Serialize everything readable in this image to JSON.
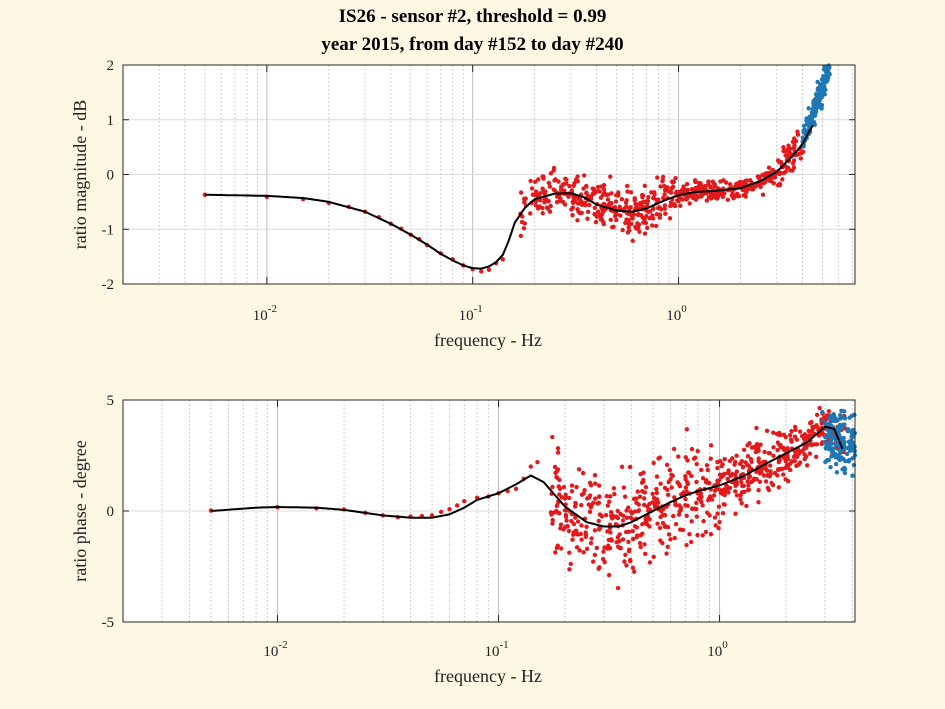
{
  "figure": {
    "background": "#fdf8e4",
    "title_line1": "IS26 - sensor #2, threshold = 0.99",
    "title_line2": "year 2015, from day #152 to day #240"
  },
  "chart_data": [
    {
      "type": "scatter",
      "title": "IS26 - sensor #2, threshold = 0.99\nyear 2015, from day #152 to day #240",
      "xlabel": "frequency - Hz",
      "ylabel": "ratio magnitude - dB",
      "xscale": "log",
      "xlim": [
        0.002,
        7.2
      ],
      "ylim": [
        -2,
        2
      ],
      "xticks": [
        {
          "base": "10",
          "exp": "-2",
          "value": 0.01
        },
        {
          "base": "10",
          "exp": "-1",
          "value": 0.1
        },
        {
          "base": "10",
          "exp": "0",
          "value": 1
        }
      ],
      "yticks": [
        -2,
        -1,
        0,
        1,
        2
      ],
      "grid": true,
      "colors": {
        "rejected": "#e31a1c",
        "above_band": "#1f77b4",
        "fit": "#000000"
      },
      "fit_curve": [
        [
          0.005,
          -0.37
        ],
        [
          0.01,
          -0.39
        ],
        [
          0.015,
          -0.43
        ],
        [
          0.02,
          -0.5
        ],
        [
          0.03,
          -0.68
        ],
        [
          0.04,
          -0.9
        ],
        [
          0.05,
          -1.1
        ],
        [
          0.06,
          -1.28
        ],
        [
          0.07,
          -1.45
        ],
        [
          0.08,
          -1.57
        ],
        [
          0.09,
          -1.66
        ],
        [
          0.1,
          -1.71
        ],
        [
          0.11,
          -1.72
        ],
        [
          0.12,
          -1.68
        ],
        [
          0.13,
          -1.6
        ],
        [
          0.14,
          -1.47
        ],
        [
          0.15,
          -1.2
        ],
        [
          0.16,
          -0.88
        ],
        [
          0.18,
          -0.6
        ],
        [
          0.2,
          -0.45
        ],
        [
          0.25,
          -0.35
        ],
        [
          0.3,
          -0.34
        ],
        [
          0.35,
          -0.42
        ],
        [
          0.4,
          -0.55
        ],
        [
          0.5,
          -0.66
        ],
        [
          0.6,
          -0.68
        ],
        [
          0.7,
          -0.62
        ],
        [
          0.8,
          -0.52
        ],
        [
          0.9,
          -0.44
        ],
        [
          1.0,
          -0.38
        ],
        [
          1.2,
          -0.32
        ],
        [
          1.5,
          -0.3
        ],
        [
          2.0,
          -0.25
        ],
        [
          2.5,
          -0.12
        ],
        [
          3.0,
          0.05
        ],
        [
          3.5,
          0.3
        ],
        [
          4.0,
          0.55
        ],
        [
          4.3,
          0.78
        ],
        [
          4.5,
          0.9
        ]
      ],
      "points_low_freq": [
        [
          0.005,
          -0.37
        ],
        [
          0.01,
          -0.41
        ],
        [
          0.015,
          -0.45
        ],
        [
          0.02,
          -0.52
        ],
        [
          0.025,
          -0.59
        ],
        [
          0.03,
          -0.68
        ],
        [
          0.035,
          -0.78
        ],
        [
          0.04,
          -0.9
        ],
        [
          0.045,
          -0.99
        ],
        [
          0.05,
          -1.1
        ],
        [
          0.055,
          -1.18
        ],
        [
          0.06,
          -1.29
        ],
        [
          0.07,
          -1.44
        ],
        [
          0.08,
          -1.55
        ],
        [
          0.09,
          -1.66
        ],
        [
          0.1,
          -1.73
        ],
        [
          0.11,
          -1.77
        ],
        [
          0.12,
          -1.74
        ],
        [
          0.13,
          -1.62
        ],
        [
          0.14,
          -1.55
        ]
      ]
    },
    {
      "type": "scatter",
      "xlabel": "frequency - Hz",
      "ylabel": "ratio phase - degree",
      "xscale": "log",
      "xlim": [
        0.002,
        4.1
      ],
      "ylim": [
        -5,
        5
      ],
      "xticks": [
        {
          "base": "10",
          "exp": "-2",
          "value": 0.01
        },
        {
          "base": "10",
          "exp": "-1",
          "value": 0.1
        },
        {
          "base": "10",
          "exp": "0",
          "value": 1
        }
      ],
      "yticks": [
        -5,
        0,
        5
      ],
      "grid": true,
      "colors": {
        "rejected": "#e31a1c",
        "above_band": "#1f77b4",
        "fit": "#000000"
      },
      "fit_curve": [
        [
          0.005,
          0.0
        ],
        [
          0.008,
          0.15
        ],
        [
          0.01,
          0.18
        ],
        [
          0.015,
          0.15
        ],
        [
          0.02,
          0.05
        ],
        [
          0.03,
          -0.2
        ],
        [
          0.04,
          -0.3
        ],
        [
          0.05,
          -0.3
        ],
        [
          0.06,
          -0.15
        ],
        [
          0.07,
          0.15
        ],
        [
          0.08,
          0.5
        ],
        [
          0.1,
          0.8
        ],
        [
          0.12,
          1.2
        ],
        [
          0.14,
          1.6
        ],
        [
          0.16,
          1.3
        ],
        [
          0.2,
          0.2
        ],
        [
          0.25,
          -0.5
        ],
        [
          0.3,
          -0.7
        ],
        [
          0.35,
          -0.7
        ],
        [
          0.4,
          -0.5
        ],
        [
          0.5,
          0.0
        ],
        [
          0.6,
          0.4
        ],
        [
          0.7,
          0.7
        ],
        [
          0.8,
          0.9
        ],
        [
          1.0,
          1.15
        ],
        [
          1.3,
          1.6
        ],
        [
          1.6,
          2.1
        ],
        [
          2.0,
          2.6
        ],
        [
          2.5,
          3.1
        ],
        [
          3.0,
          3.8
        ],
        [
          3.3,
          3.7
        ],
        [
          3.6,
          2.8
        ]
      ],
      "points_low_freq": [
        [
          0.005,
          0.02
        ],
        [
          0.01,
          0.17
        ],
        [
          0.015,
          0.12
        ],
        [
          0.02,
          0.07
        ],
        [
          0.025,
          -0.08
        ],
        [
          0.03,
          -0.2
        ],
        [
          0.035,
          -0.28
        ],
        [
          0.04,
          -0.25
        ],
        [
          0.045,
          -0.23
        ],
        [
          0.05,
          -0.2
        ],
        [
          0.055,
          -0.04
        ],
        [
          0.06,
          0.08
        ],
        [
          0.065,
          0.25
        ],
        [
          0.07,
          0.44
        ],
        [
          0.08,
          0.6
        ],
        [
          0.09,
          0.65
        ],
        [
          0.1,
          0.8
        ],
        [
          0.11,
          0.9
        ],
        [
          0.12,
          1.0
        ],
        [
          0.13,
          1.45
        ],
        [
          0.14,
          2.0
        ],
        [
          0.15,
          2.2
        ]
      ]
    }
  ]
}
